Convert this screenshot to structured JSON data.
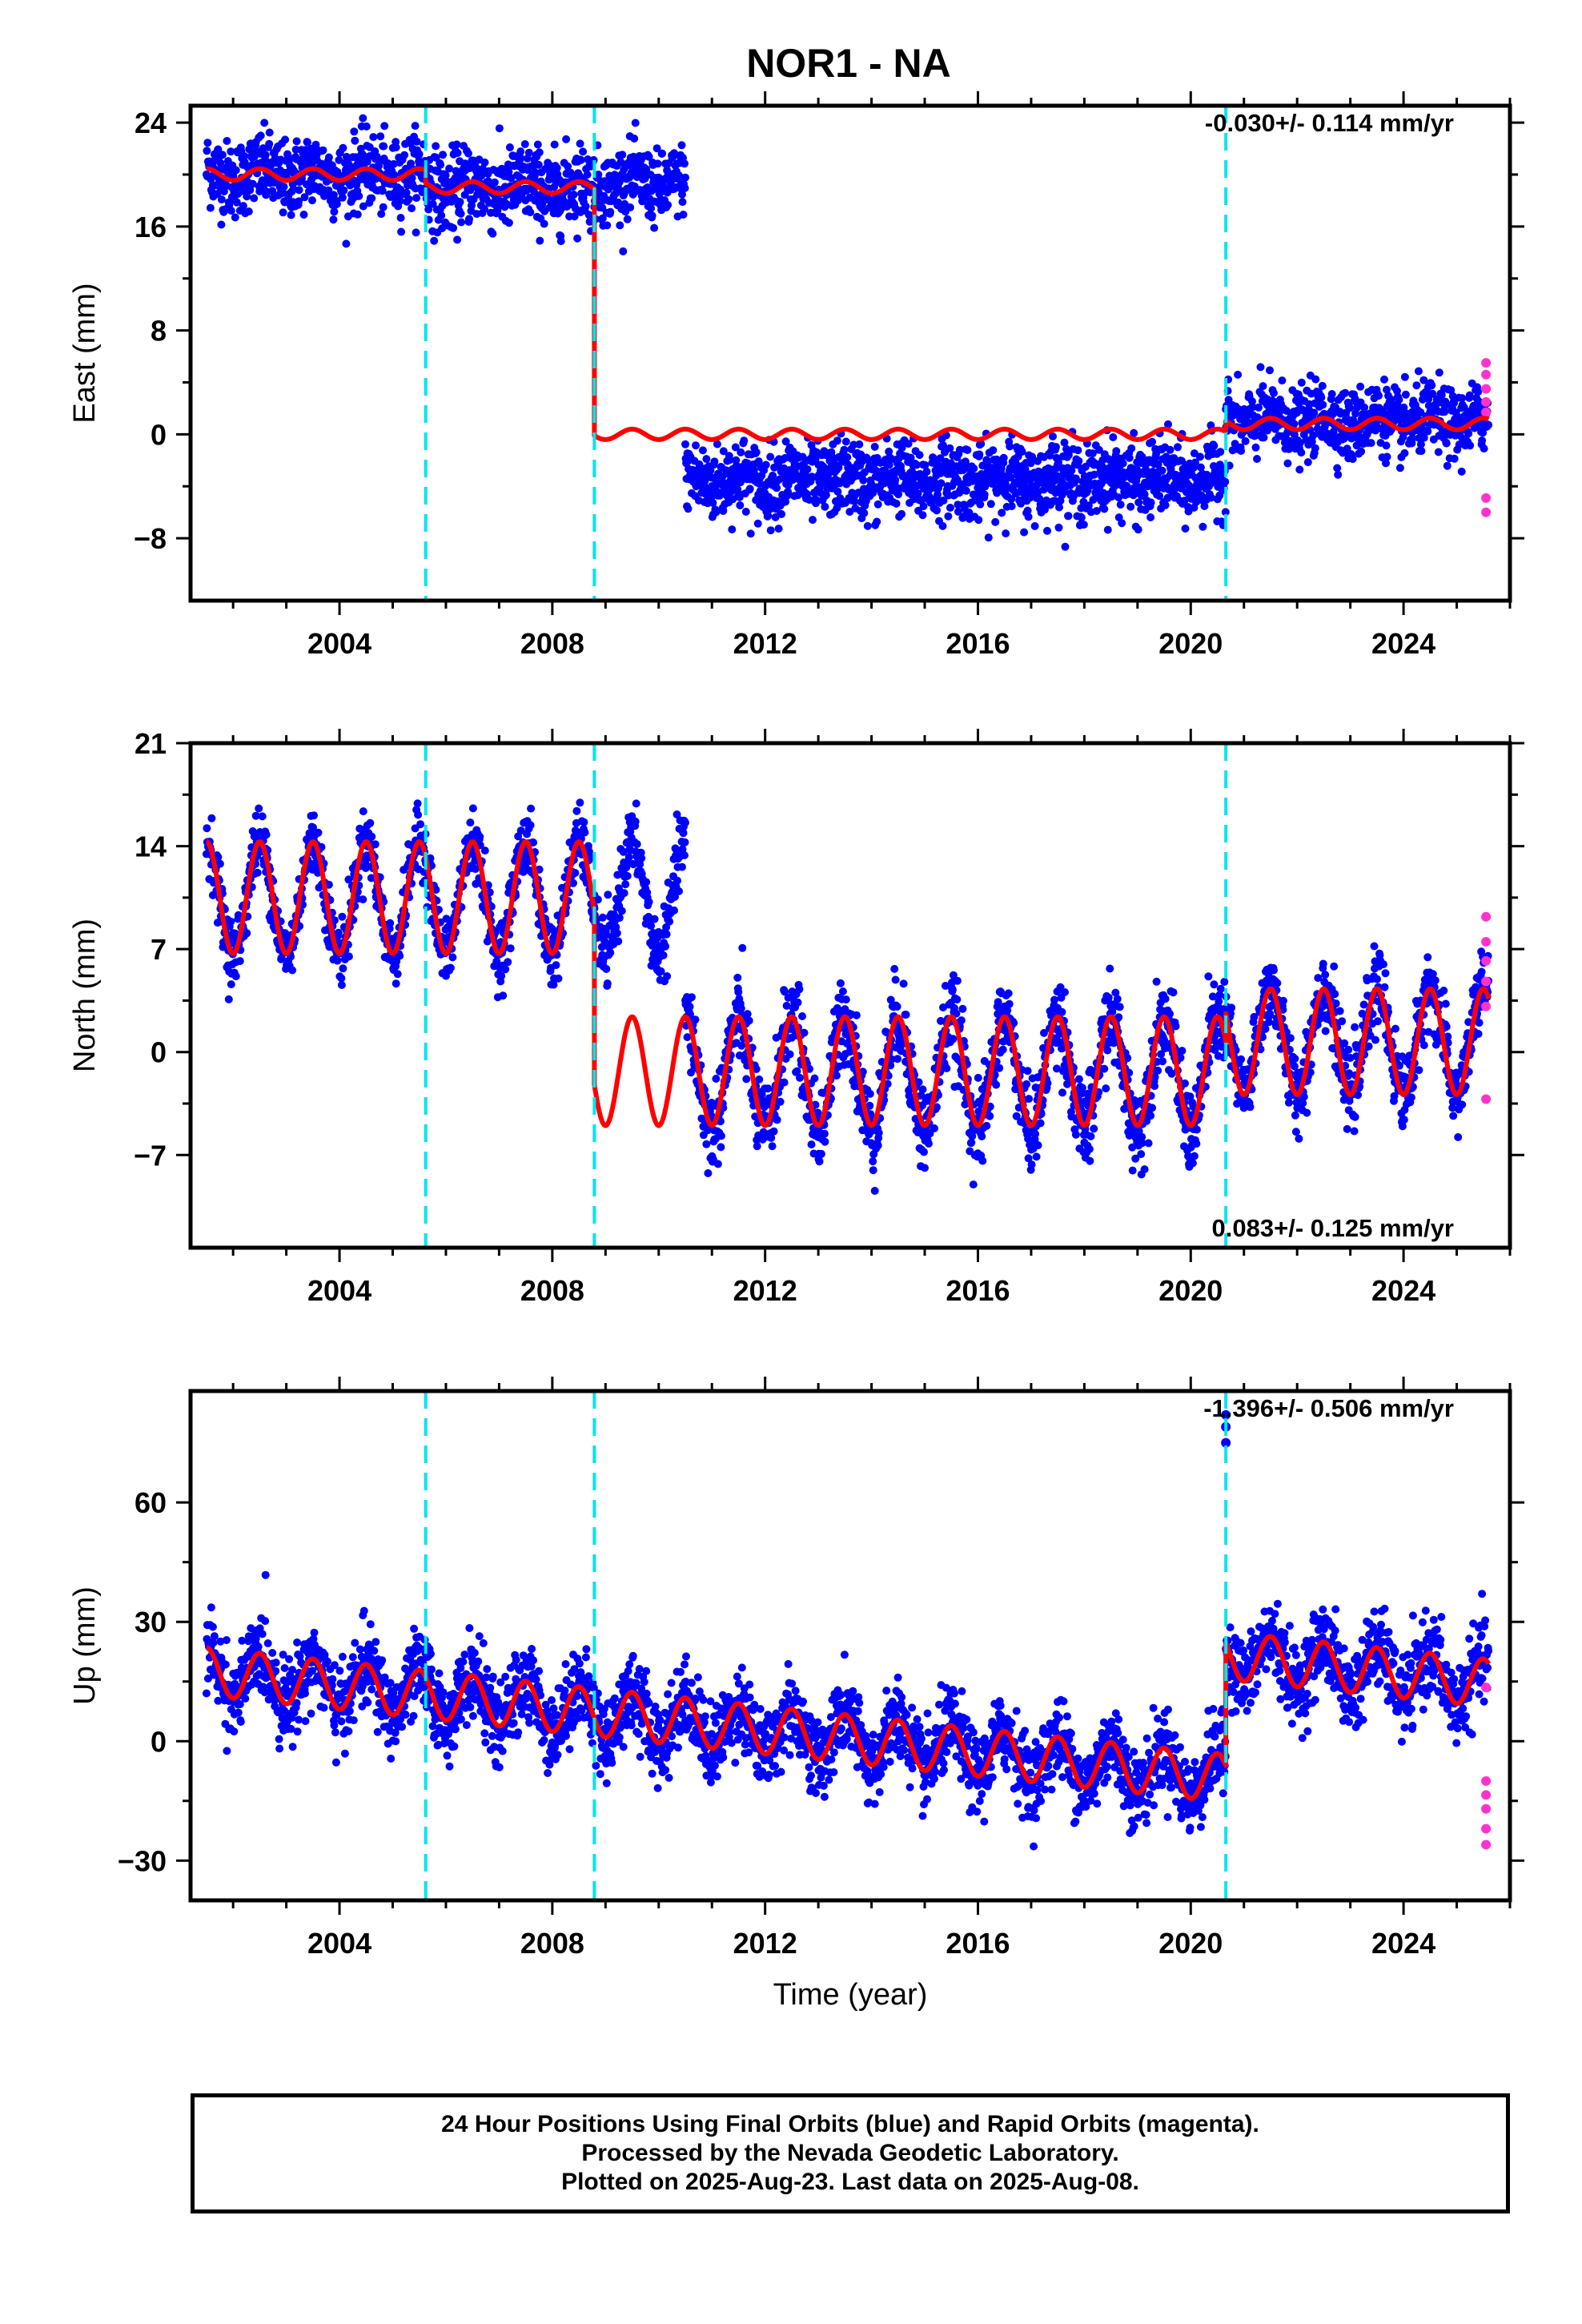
{
  "title": "NOR1 - NA",
  "colors": {
    "final": "#0000ff",
    "rapid": "#ff33cc",
    "model": "#ff0000",
    "offset": "#00e5ee",
    "axis": "#000000"
  },
  "chart_data": [
    {
      "type": "scatter",
      "name": "east",
      "ylabel": "East (mm)",
      "xlabel": "",
      "xlim": [
        2001.2,
        2026.0
      ],
      "ylim": [
        -12.8,
        25.3
      ],
      "x_ticks": [
        "2004",
        "2008",
        "2012",
        "2016",
        "2020",
        "2024"
      ],
      "y_ticks": [
        "24",
        "16",
        "8",
        "0",
        "−8"
      ],
      "rate": "-0.030+/- 0.114 mm/yr",
      "rate_position": "top-right",
      "offsets": [
        2005.62,
        2008.79,
        2020.66
      ],
      "segments": [
        {
          "x0": 2001.5,
          "x1": 2005.62,
          "level": 20.0,
          "amp": 0.45,
          "spread": 1.6
        },
        {
          "x0": 2005.62,
          "x1": 2008.79,
          "level": 19.0,
          "amp": 0.45,
          "spread": 1.7
        },
        {
          "x0": 2008.79,
          "x1": 2010.5,
          "level": 19.3,
          "amp": 0.45,
          "spread": 1.5
        },
        {
          "x0": 2010.5,
          "x1": 2020.66,
          "level": -3.5,
          "amp": 0.4,
          "spread": 1.6
        },
        {
          "x0": 2020.66,
          "x1": 2025.6,
          "level": 1.0,
          "amp": 0.45,
          "spread": 1.5
        }
      ],
      "model": [
        {
          "x0": 2001.5,
          "x1": 2005.62,
          "level": 20.0,
          "amp": 0.45
        },
        {
          "x0": 2005.62,
          "x1": 2008.79,
          "level": 19.0,
          "amp": 0.45
        },
        {
          "x0": 2008.79,
          "x1": 2020.66,
          "level": 0.0,
          "amp": 0.4
        },
        {
          "x0": 2020.66,
          "x1": 2025.6,
          "level": 0.8,
          "amp": 0.45
        }
      ],
      "rapid": [
        [
          2025.55,
          5.5
        ],
        [
          2025.55,
          4.6
        ],
        [
          2025.55,
          3.5
        ],
        [
          2025.55,
          2.5
        ],
        [
          2025.55,
          1.7
        ],
        [
          2025.55,
          -4.9
        ],
        [
          2025.55,
          -6.0
        ]
      ]
    },
    {
      "type": "scatter",
      "name": "north",
      "ylabel": "North (mm)",
      "xlabel": "",
      "xlim": [
        2001.2,
        2026.0
      ],
      "ylim": [
        -13.3,
        21.0
      ],
      "x_ticks": [
        "2004",
        "2008",
        "2012",
        "2016",
        "2020",
        "2024"
      ],
      "y_ticks": [
        "21",
        "14",
        "7",
        "0",
        "−7"
      ],
      "rate": "0.083+/- 0.125 mm/yr",
      "rate_position": "bottom-right",
      "offsets": [
        2005.62,
        2008.79,
        2020.66
      ],
      "segments": [
        {
          "x0": 2001.5,
          "x1": 2008.79,
          "level": 10.5,
          "amp": 3.8,
          "spread": 1.2
        },
        {
          "x0": 2008.79,
          "x1": 2010.5,
          "level": 10.5,
          "amp": 3.8,
          "spread": 1.2
        },
        {
          "x0": 2010.5,
          "x1": 2020.66,
          "level": -1.5,
          "amp": 3.8,
          "spread": 1.6
        },
        {
          "x0": 2020.66,
          "x1": 2025.6,
          "level": 0.8,
          "amp": 3.6,
          "spread": 1.4
        }
      ],
      "model": [
        {
          "x0": 2001.5,
          "x1": 2008.79,
          "level": 10.5,
          "amp": 3.8
        },
        {
          "x0": 2008.79,
          "x1": 2020.66,
          "level": -1.3,
          "amp": 3.7
        },
        {
          "x0": 2020.66,
          "x1": 2025.6,
          "level": 0.7,
          "amp": 3.6
        }
      ],
      "rapid": [
        [
          2025.55,
          9.2
        ],
        [
          2025.55,
          7.5
        ],
        [
          2025.55,
          6.2
        ],
        [
          2025.55,
          4.8
        ],
        [
          2025.55,
          3.1
        ],
        [
          2025.55,
          -3.2
        ]
      ]
    },
    {
      "type": "scatter",
      "name": "up",
      "ylabel": "Up (mm)",
      "xlabel": "Time (year)",
      "xlim": [
        2001.2,
        2026.0
      ],
      "ylim": [
        -40.0,
        88.0
      ],
      "x_ticks": [
        "2004",
        "2008",
        "2012",
        "2016",
        "2020",
        "2024"
      ],
      "y_ticks": [
        "60",
        "30",
        "0",
        "−30"
      ],
      "rate": "-1.396+/- 0.506 mm/yr",
      "rate_position": "top-right",
      "offsets": [
        2005.62,
        2008.79,
        2020.66
      ],
      "segments": [
        {
          "x0": 2001.5,
          "x1": 2020.66,
          "level0": 17.5,
          "slope": -1.4,
          "amp": 6.0,
          "spread": 5.5
        },
        {
          "x0": 2020.66,
          "x1": 2025.6,
          "level0": 17.5,
          "slope": -1.4,
          "amp": 6.0,
          "spread": 5.5,
          "shift": 4.0
        }
      ],
      "model": [
        {
          "x0": 2001.5,
          "x1": 2020.66,
          "level0": 17.5,
          "slope": -1.4,
          "amp": 6.0
        },
        {
          "x0": 2020.66,
          "x1": 2025.6,
          "level0": 17.5,
          "slope": -1.4,
          "amp": 6.0,
          "shift": 4.0
        }
      ],
      "outliers": [
        [
          2020.66,
          82.0
        ],
        [
          2020.66,
          79.0
        ],
        [
          2020.66,
          75.0
        ]
      ],
      "rapid": [
        [
          2025.55,
          13.5
        ],
        [
          2025.55,
          -10.0
        ],
        [
          2025.55,
          -13.5
        ],
        [
          2025.55,
          -17.0
        ],
        [
          2025.55,
          -22.0
        ],
        [
          2025.55,
          -26.0
        ]
      ]
    }
  ],
  "footer": {
    "line1": "24 Hour Positions Using Final Orbits (blue) and Rapid Orbits (magenta).",
    "line2": "Processed by the Nevada Geodetic Laboratory.",
    "line3": "Plotted on 2025-Aug-23. Last data on 2025-Aug-08."
  }
}
